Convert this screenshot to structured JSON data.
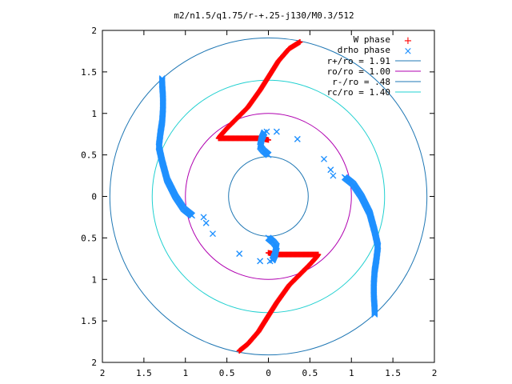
{
  "chart_data": {
    "type": "scatter",
    "title": "m2/n1.5/q1.75/r-+.25-j130/M0.3/512",
    "xlabel": "",
    "ylabel": "",
    "xlim": [
      2,
      -2
    ],
    "ylim": [
      -2,
      2
    ],
    "x_ticks": [
      2,
      1.5,
      1,
      0.5,
      0,
      0.5,
      1,
      1.5,
      2
    ],
    "x_tick_values": [
      2,
      1.5,
      1,
      0.5,
      0,
      -0.5,
      -1,
      -1.5,
      -2
    ],
    "y_ticks": [
      2,
      1.5,
      1,
      0.5,
      0,
      0.5,
      1,
      1.5,
      2
    ],
    "y_tick_values": [
      2,
      1.5,
      1,
      0.5,
      0,
      -0.5,
      -1,
      -1.5,
      -2
    ],
    "grid": false,
    "legend_position": "top-right",
    "series": [
      {
        "name": "W phase",
        "marker": "+",
        "color": "#ff0000",
        "curves": [
          [
            [
              0.38,
              1.86
            ],
            [
              0.25,
              1.78
            ],
            [
              0.12,
              1.63
            ],
            [
              0.02,
              1.47
            ],
            [
              -0.1,
              1.28
            ],
            [
              -0.25,
              1.07
            ],
            [
              -0.4,
              0.92
            ],
            [
              -0.5,
              0.82
            ],
            [
              -0.58,
              0.73
            ],
            [
              -0.6,
              0.7
            ],
            [
              -0.5,
              0.7
            ],
            [
              -0.3,
              0.7
            ],
            [
              -0.1,
              0.7
            ],
            [
              0,
              0.68
            ]
          ],
          [
            [
              -0.35,
              -1.86
            ],
            [
              -0.25,
              -1.78
            ],
            [
              -0.12,
              -1.63
            ],
            [
              -0.02,
              -1.47
            ],
            [
              0.1,
              -1.28
            ],
            [
              0.25,
              -1.07
            ],
            [
              0.4,
              -0.92
            ],
            [
              0.5,
              -0.82
            ],
            [
              0.58,
              -0.73
            ],
            [
              0.6,
              -0.7
            ],
            [
              0.5,
              -0.7
            ],
            [
              0.3,
              -0.7
            ],
            [
              0.1,
              -0.7
            ],
            [
              0,
              -0.68
            ]
          ]
        ]
      },
      {
        "name": "drho phase",
        "marker": "x",
        "color": "#1e90ff",
        "curves": [
          [
            [
              -0.05,
              0.77
            ],
            [
              -0.08,
              0.7
            ],
            [
              -0.1,
              0.6
            ],
            [
              -0.06,
              0.55
            ],
            [
              0,
              0.5
            ]
          ],
          [
            [
              0.92,
              0.23
            ],
            [
              1.02,
              0.15
            ],
            [
              1.12,
              0
            ],
            [
              1.22,
              -0.2
            ],
            [
              1.28,
              -0.42
            ],
            [
              1.32,
              -0.6
            ],
            [
              1.3,
              -0.77
            ],
            [
              1.28,
              -0.9
            ],
            [
              1.27,
              -1.05
            ],
            [
              1.27,
              -1.2
            ],
            [
              1.28,
              -1.35
            ],
            [
              1.28,
              -1.42
            ]
          ],
          [
            [
              0.05,
              -0.77
            ],
            [
              0.08,
              -0.7
            ],
            [
              0.1,
              -0.6
            ],
            [
              0.06,
              -0.55
            ],
            [
              0,
              -0.5
            ]
          ],
          [
            [
              -0.92,
              -0.23
            ],
            [
              -1.02,
              -0.15
            ],
            [
              -1.12,
              0
            ],
            [
              -1.22,
              0.2
            ],
            [
              -1.28,
              0.42
            ],
            [
              -1.32,
              0.6
            ],
            [
              -1.3,
              0.77
            ],
            [
              -1.28,
              0.9
            ],
            [
              -1.27,
              1.05
            ],
            [
              -1.27,
              1.2
            ],
            [
              -1.28,
              1.35
            ],
            [
              -1.28,
              1.42
            ]
          ]
        ],
        "scattered_points": [
          [
            -0.02,
            0.78
          ],
          [
            0.1,
            0.78
          ],
          [
            0.35,
            0.69
          ],
          [
            0.67,
            0.45
          ],
          [
            0.75,
            0.32
          ],
          [
            0.78,
            0.25
          ],
          [
            0.02,
            -0.78
          ],
          [
            -0.1,
            -0.78
          ],
          [
            -0.35,
            -0.69
          ],
          [
            -0.67,
            -0.45
          ],
          [
            -0.75,
            -0.32
          ],
          [
            -0.78,
            -0.25
          ]
        ]
      }
    ],
    "circles": [
      {
        "name": "r+/ro = 1.91",
        "radius": 1.91,
        "color": "#1f77b4"
      },
      {
        "name": "ro/ro = 1.00",
        "radius": 1.0,
        "color": "#b000b0"
      },
      {
        "name": "r-/ro = .48",
        "radius": 0.48,
        "color": "#1f77b4"
      },
      {
        "name": "rc/ro = 1.40",
        "radius": 1.4,
        "color": "#20d0d0"
      }
    ]
  }
}
